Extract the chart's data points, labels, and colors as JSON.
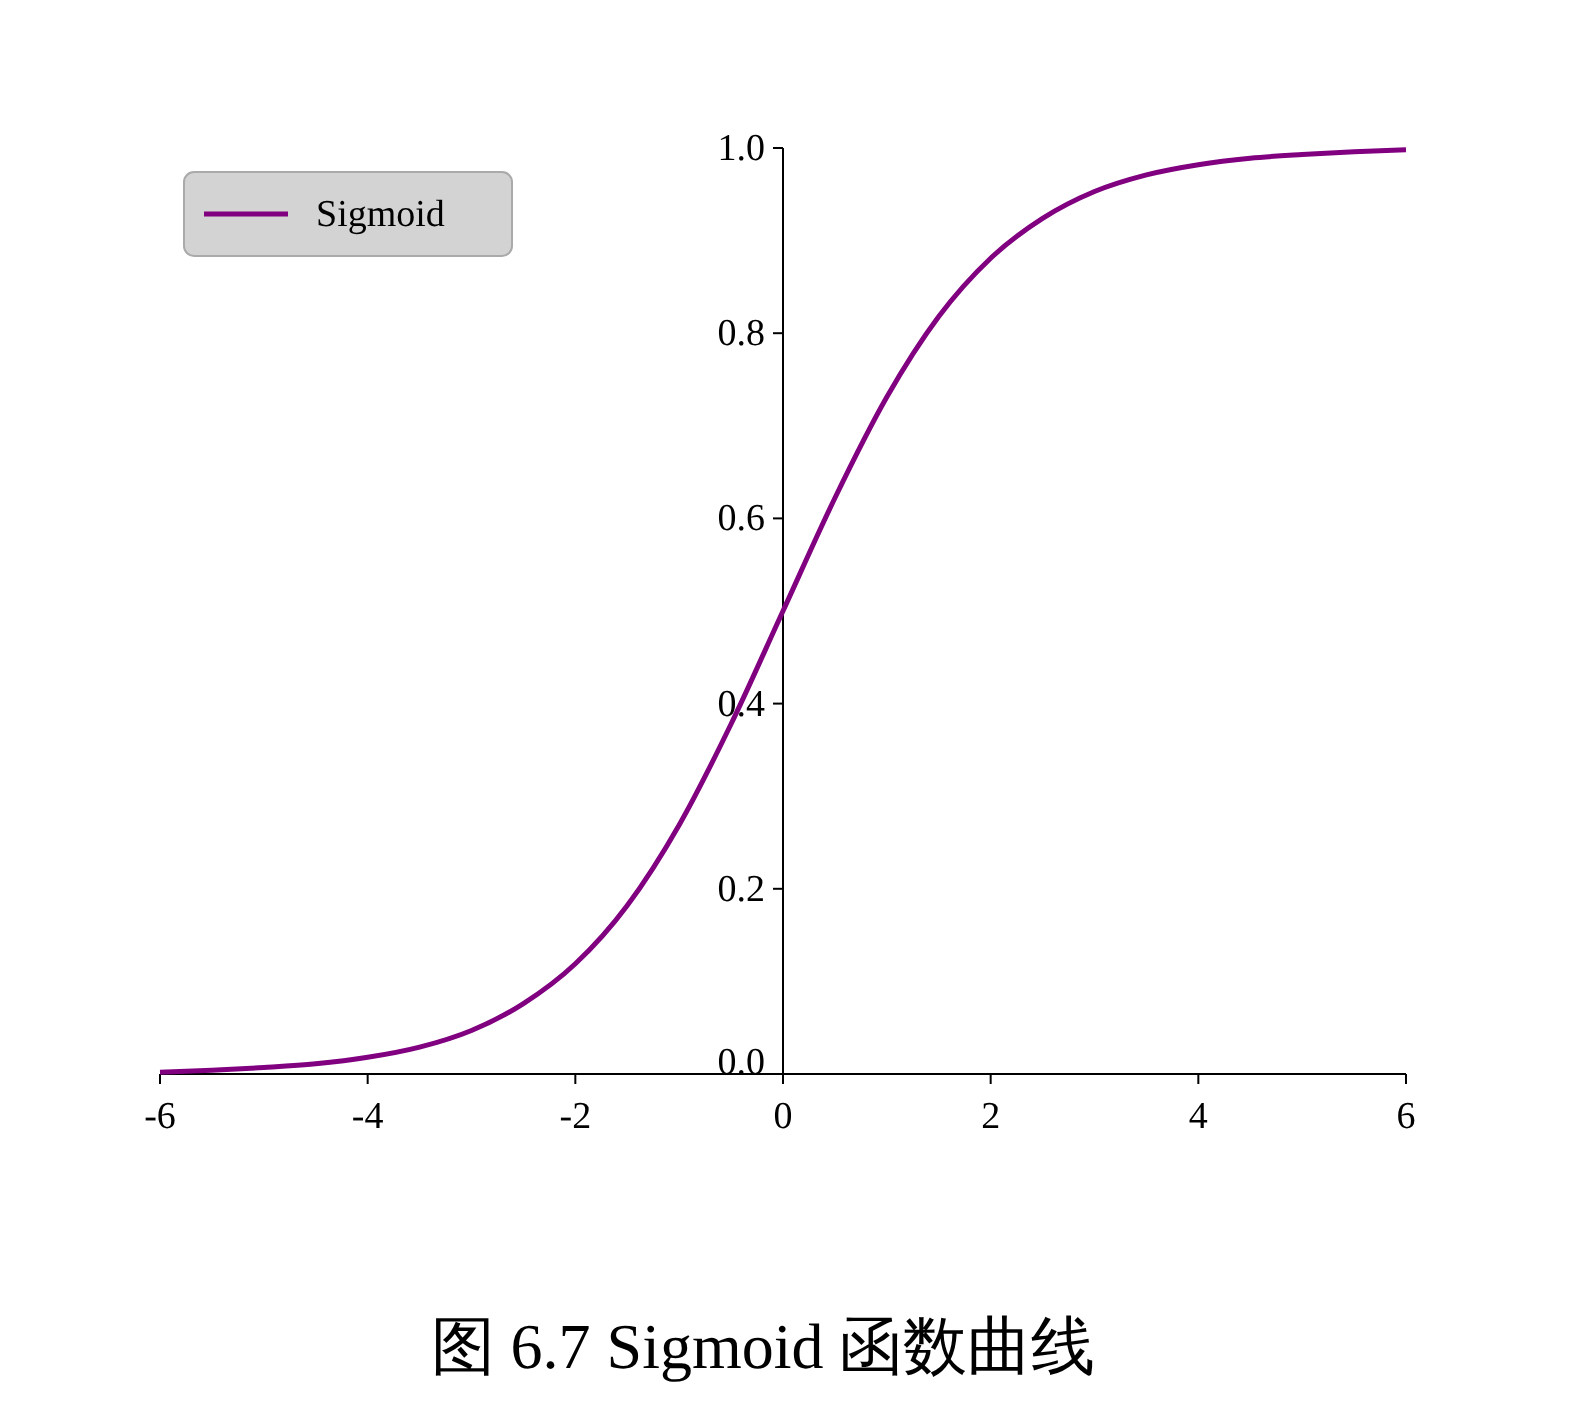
{
  "chart_data": {
    "type": "line",
    "annotations": [
      "图 6.7 Sigmoid 函数曲线"
    ],
    "x": [
      -6,
      -5.5,
      -5,
      -4.5,
      -4,
      -3.5,
      -3,
      -2.5,
      -2,
      -1.5,
      -1,
      -0.5,
      0,
      0.5,
      1,
      1.5,
      2,
      2.5,
      3,
      3.5,
      4,
      4.5,
      5,
      5.5,
      6
    ],
    "series": [
      {
        "name": "Sigmoid",
        "color": "#800080",
        "values": [
          0.002,
          0.004,
          0.007,
          0.011,
          0.018,
          0.029,
          0.047,
          0.076,
          0.119,
          0.182,
          0.269,
          0.378,
          0.5,
          0.622,
          0.731,
          0.818,
          0.881,
          0.924,
          0.953,
          0.971,
          0.982,
          0.989,
          0.993,
          0.996,
          0.998
        ]
      }
    ],
    "xlim": [
      -6,
      6
    ],
    "ylim": [
      0,
      1
    ],
    "xticks": [
      -6,
      -4,
      -2,
      0,
      2,
      4,
      6
    ],
    "yticks": [
      {
        "value": 0,
        "label": "0.0"
      },
      {
        "value": 0.2,
        "label": "0.2"
      },
      {
        "value": 0.4,
        "label": "0.4"
      },
      {
        "value": 0.6,
        "label": "0.6"
      },
      {
        "value": 0.8,
        "label": "0.8"
      },
      {
        "value": 1,
        "label": "1.0"
      }
    ],
    "legend": "top left",
    "grid": false,
    "marker": "none",
    "line_style": "solid"
  }
}
